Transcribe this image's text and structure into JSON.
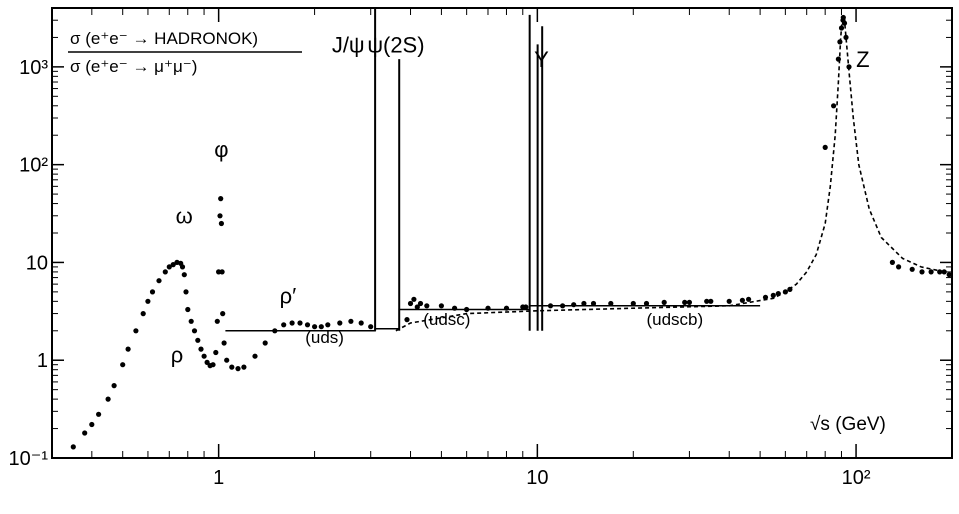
{
  "chart_data": {
    "type": "scatter",
    "title": "",
    "ratio_numerator": "σ (e⁺e⁻ → HADRONOK)",
    "ratio_denominator": "σ (e⁺e⁻ → μ⁺μ⁻)",
    "xlabel": "√s (GeV)",
    "ylabel": "",
    "x_scale": "log",
    "y_scale": "log",
    "xlim": [
      0.3,
      200
    ],
    "ylim": [
      0.1,
      4000
    ],
    "x_tick_labels": [
      {
        "value": 1,
        "label": "1"
      },
      {
        "value": 10,
        "label": "10"
      },
      {
        "value": 100,
        "label": "10²"
      }
    ],
    "y_tick_labels": [
      {
        "value": 0.1,
        "label": "10⁻¹"
      },
      {
        "value": 1,
        "label": "1"
      },
      {
        "value": 10,
        "label": "10"
      },
      {
        "value": 100,
        "label": "10²"
      },
      {
        "value": 1000,
        "label": "10³"
      }
    ],
    "grid": false,
    "resonance_labels": [
      {
        "text": "ρ",
        "x": 0.74,
        "y": 0.95
      },
      {
        "text": "ω",
        "x": 0.78,
        "y": 25
      },
      {
        "text": "φ",
        "x": 1.02,
        "y": 120
      },
      {
        "text": "ρ′",
        "x": 1.65,
        "y": 3.8
      },
      {
        "text": "J/ψ",
        "x": 2.55,
        "y": 1400
      },
      {
        "text": "ψ(2S)",
        "x": 3.6,
        "y": 1400
      },
      {
        "text": "Υ",
        "x": 10.3,
        "y": 1000
      },
      {
        "text": "Z",
        "x": 105,
        "y": 1000
      }
    ],
    "region_labels": [
      {
        "text": "(uds)",
        "x": 2.15,
        "y": 1.5
      },
      {
        "text": "(udsc)",
        "x": 5.2,
        "y": 2.3
      },
      {
        "text": "(udscb)",
        "x": 27,
        "y": 2.3
      }
    ],
    "series": [
      {
        "kind": "points",
        "x": [
          0.35,
          0.38,
          0.4,
          0.42,
          0.45,
          0.47,
          0.5,
          0.52,
          0.55,
          0.58,
          0.6,
          0.62,
          0.65,
          0.68,
          0.7,
          0.72,
          0.74,
          0.76,
          0.77,
          0.78,
          0.79,
          0.8,
          0.82,
          0.84,
          0.86,
          0.88,
          0.9,
          0.92,
          0.94,
          0.96,
          0.98,
          0.99,
          1.0,
          1.01,
          1.015,
          1.02,
          1.025,
          1.03,
          1.04,
          1.06,
          1.1,
          1.15,
          1.2,
          1.3,
          1.4,
          1.5,
          1.6,
          1.7,
          1.8,
          1.9,
          2.0,
          2.1,
          2.2,
          2.4,
          2.6,
          2.8,
          3.0,
          3.9,
          4.0,
          4.1,
          4.2,
          4.3,
          4.5,
          5.0,
          5.5,
          6.0,
          7.0,
          8.0,
          9.0,
          9.2,
          11.0,
          12.0,
          13.0,
          14.0,
          15.0,
          17.0,
          20.0,
          22.0,
          25.0,
          29.0,
          30.0,
          34.0,
          35.0,
          40.0,
          44.0,
          46.0,
          52.0,
          55.0,
          57.0,
          60.0,
          62.0,
          80.0,
          85.0,
          88.0,
          89.0,
          90.0,
          91.0,
          91.2,
          92.0,
          93.0,
          95.0,
          130.0,
          136.0,
          150.0,
          161.0,
          172.0,
          183.0,
          189.0,
          196.0
        ],
        "y": [
          0.13,
          0.18,
          0.22,
          0.28,
          0.4,
          0.55,
          0.9,
          1.3,
          2.0,
          3.0,
          4.0,
          5.0,
          6.5,
          8.0,
          9.0,
          9.5,
          10.0,
          9.8,
          9.0,
          7.5,
          5.0,
          3.3,
          2.5,
          2.0,
          1.6,
          1.3,
          1.1,
          0.95,
          0.88,
          0.9,
          1.2,
          2.5,
          8.0,
          30.0,
          45.0,
          25.0,
          8.0,
          3.0,
          1.5,
          1.0,
          0.85,
          0.82,
          0.85,
          1.1,
          1.5,
          2.0,
          2.3,
          2.4,
          2.4,
          2.3,
          2.2,
          2.2,
          2.3,
          2.4,
          2.5,
          2.4,
          2.2,
          2.6,
          3.8,
          4.2,
          3.5,
          3.8,
          3.6,
          3.6,
          3.4,
          3.3,
          3.4,
          3.4,
          3.5,
          3.5,
          3.6,
          3.6,
          3.7,
          3.8,
          3.8,
          3.8,
          3.8,
          3.8,
          3.9,
          3.9,
          3.9,
          4.0,
          4.0,
          4.0,
          4.1,
          4.2,
          4.4,
          4.6,
          4.8,
          5.0,
          5.3,
          150.0,
          400.0,
          1200.0,
          1800.0,
          2500.0,
          3000.0,
          3200.0,
          2800.0,
          2000.0,
          1000.0,
          10.0,
          9.0,
          8.5,
          8.0,
          8.0,
          8.0,
          8.0,
          7.5
        ]
      },
      {
        "kind": "spikes",
        "x": [
          3.097,
          3.686,
          9.46,
          10.02,
          10.355
        ],
        "y": [
          4000,
          1200,
          3400,
          1700,
          2600
        ]
      },
      {
        "kind": "dashed-curve",
        "x": [
          3.6,
          4.0,
          6.0,
          10.0,
          20.0,
          40.0,
          55.0,
          60.0,
          65.0,
          70.0,
          75.0,
          80.0,
          83.0,
          86.0,
          88.0,
          89.5,
          90.5,
          91.2,
          92.0,
          93.0,
          95.0,
          98.0,
          102.0,
          110.0,
          120.0,
          140.0,
          160.0,
          190.0
        ],
        "y": [
          2.0,
          2.4,
          3.0,
          3.2,
          3.4,
          3.6,
          4.3,
          5.0,
          6.0,
          8.0,
          12.0,
          25.0,
          60.0,
          200.0,
          700.0,
          2000.0,
          3000.0,
          3300.0,
          3000.0,
          2000.0,
          900.0,
          300.0,
          100.0,
          35.0,
          18.0,
          11.0,
          9.0,
          8.0
        ]
      },
      {
        "kind": "step-line",
        "x": [
          1.05,
          3.097,
          3.097,
          3.686,
          3.686,
          9.46,
          9.46,
          50.0
        ],
        "y": [
          2.0,
          2.0,
          2.1,
          2.1,
          3.3,
          3.3,
          3.6,
          3.6
        ]
      }
    ]
  }
}
